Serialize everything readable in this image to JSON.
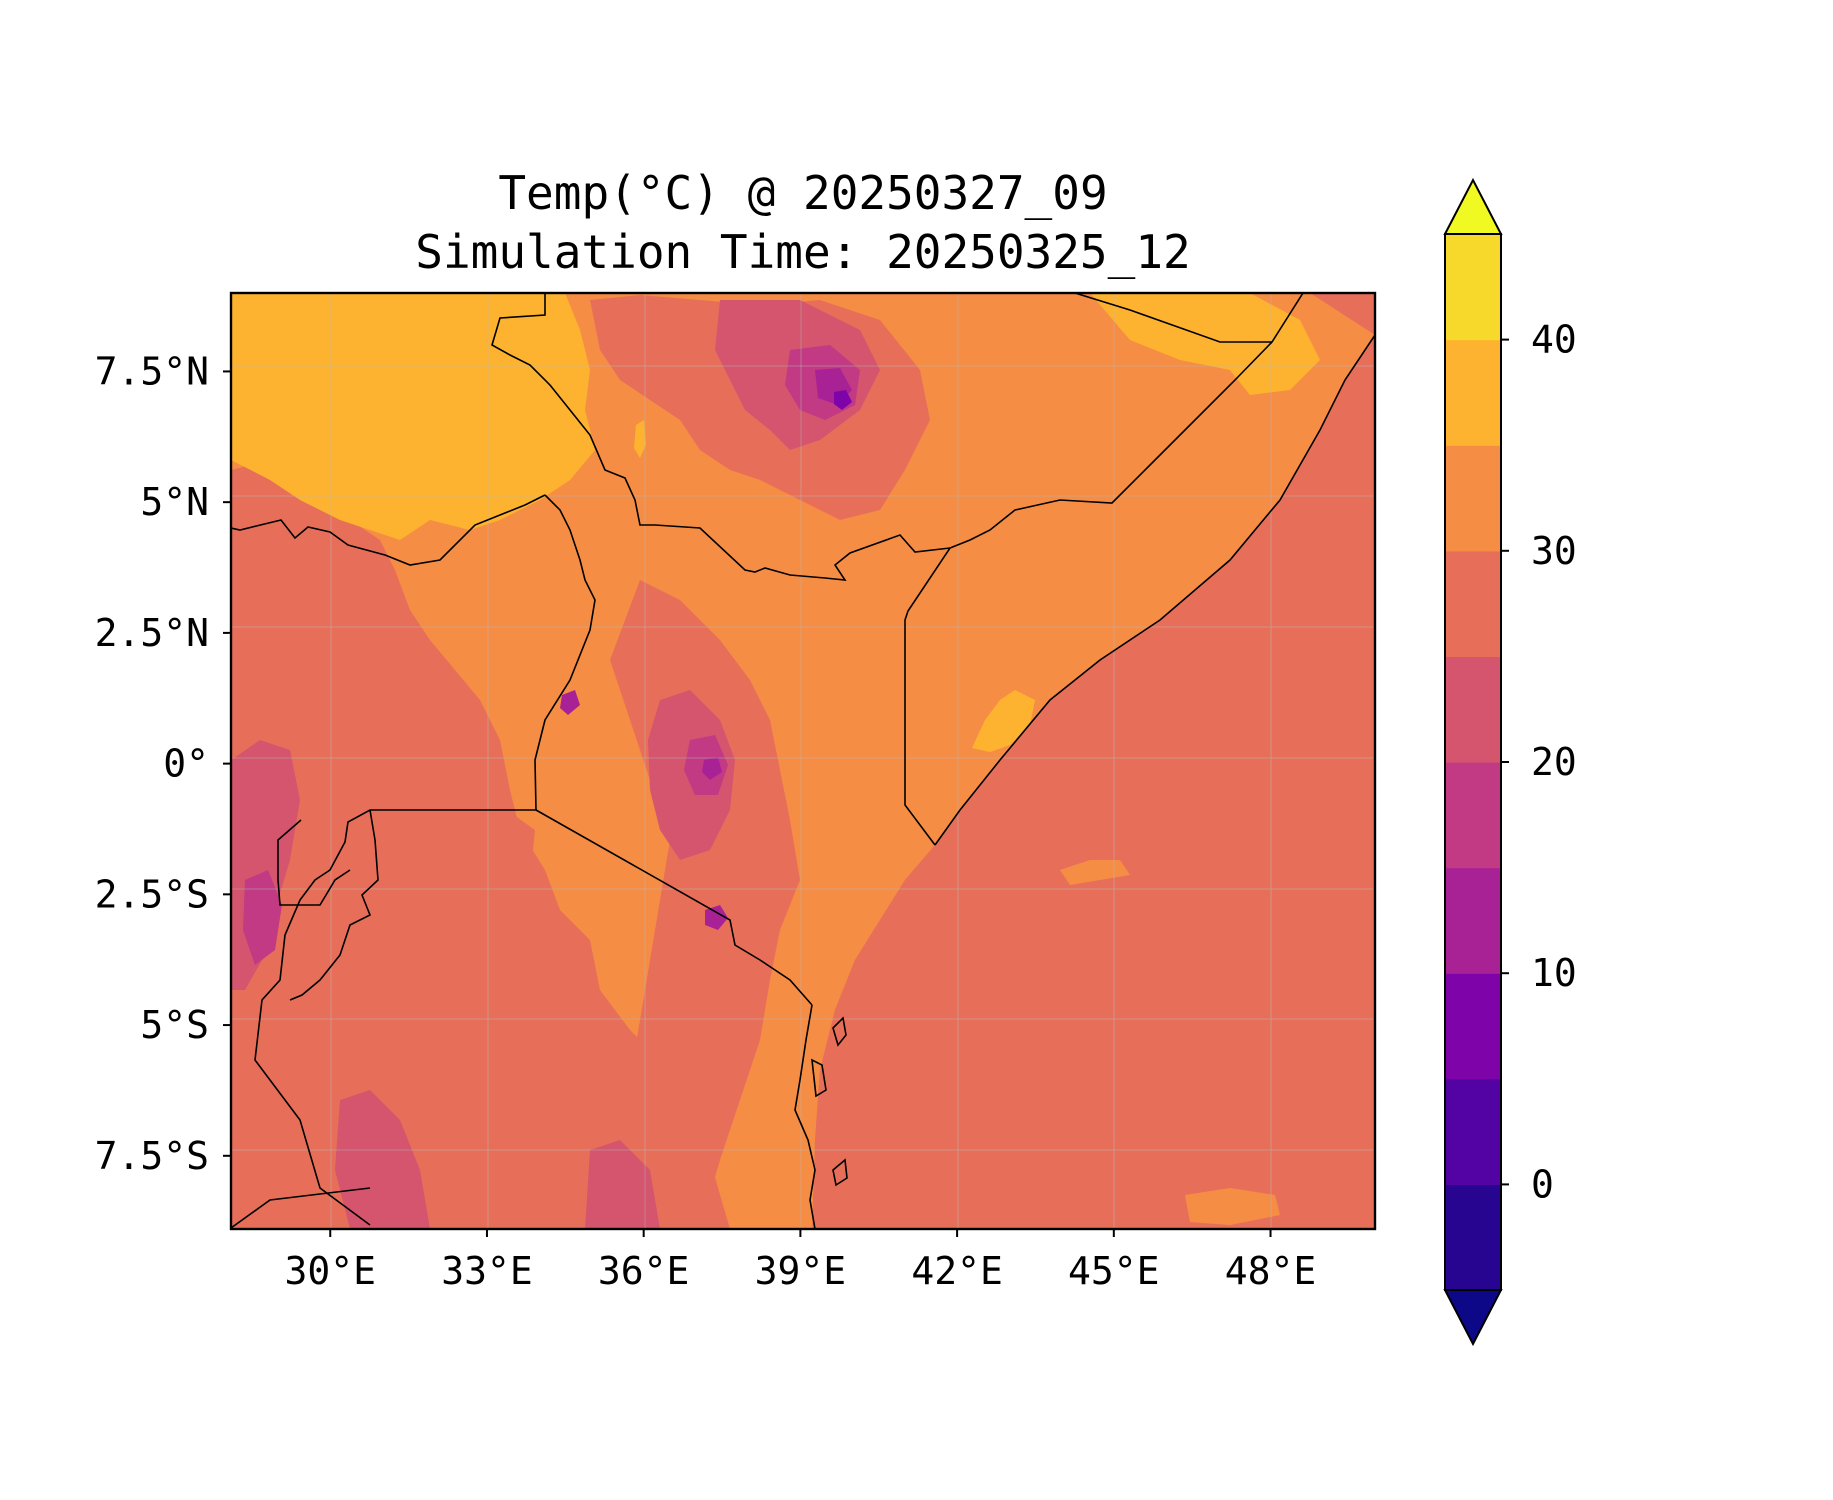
{
  "chart_data": {
    "type": "filled-contour-map",
    "title": "Temp(°C) @ 20250327_09",
    "subtitle": "Simulation Time: 20250325_12",
    "x_ticks": [
      "30°E",
      "33°E",
      "36°E",
      "39°E",
      "42°E",
      "45°E",
      "48°E"
    ],
    "x_tick_values": [
      30,
      33,
      36,
      39,
      42,
      45,
      48
    ],
    "y_ticks": [
      "7.5°N",
      "5°N",
      "2.5°N",
      "0°",
      "2.5°S",
      "5°S",
      "7.5°S"
    ],
    "y_tick_values": [
      7.5,
      5,
      2.5,
      0,
      -2.5,
      -5,
      -7.5
    ],
    "lon_range": [
      28.1,
      50.0
    ],
    "lat_range": [
      -8.9,
      9.0
    ],
    "grid": true,
    "colorbar": {
      "position": "right",
      "extend": "both",
      "levels": [
        -5,
        0,
        5,
        10,
        15,
        20,
        25,
        30,
        35,
        40,
        45
      ],
      "tick_values": [
        0,
        10,
        20,
        30,
        40
      ],
      "tick_labels": [
        "0",
        "10",
        "20",
        "30",
        "40"
      ],
      "colors": [
        "#0d0887",
        "#270591",
        "#5302a3",
        "#7e03a8",
        "#a82296",
        "#c13a83",
        "#d5546e",
        "#e76f5a",
        "#f68d45",
        "#fdb32f",
        "#f6d92b",
        "#f0f921"
      ],
      "under_color": "#0d0887",
      "over_color": "#f0f921"
    }
  }
}
